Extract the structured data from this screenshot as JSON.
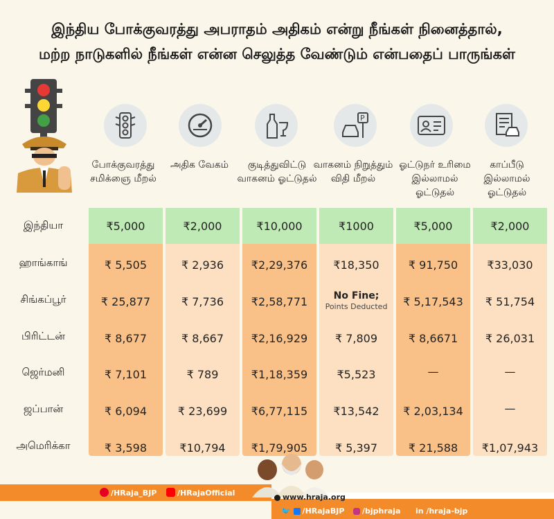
{
  "title_line1": "இந்திய போக்குவரத்து அபராதம் அதிகம் என்று நீங்கள் நினைத்தால்,",
  "title_line2": "மற்ற நாடுகளில் நீங்கள் என்ன செலுத்த வேண்டும் என்பதைப் பாருங்கள்",
  "columns": [
    {
      "header": "போக்குவரத்து சமிக்ஞை மீறல்",
      "icon": "traffic-light-icon"
    },
    {
      "header": "அதிக வேகம்",
      "icon": "speedometer-icon"
    },
    {
      "header": "குடித்துவிட்டு வாகனம் ஓட்டுதல்",
      "icon": "bottle-glass-icon"
    },
    {
      "header": "வாகனம் நிறுத்தும் விதி மீறல்",
      "icon": "parking-icon"
    },
    {
      "header": "ஓட்டுநர் உரிமை இல்லாமல் ஓட்டுதல்",
      "icon": "license-card-icon"
    },
    {
      "header": "காப்பீடு இல்லாமல் ஓட்டுதல்",
      "icon": "insurance-document-icon"
    }
  ],
  "rows": [
    {
      "country": "இந்தியா",
      "values": [
        "₹5,000",
        "₹2,000",
        "₹10,000",
        "₹1000",
        "₹5,000",
        "₹2,000"
      ]
    },
    {
      "country": "ஹாங்காங்",
      "values": [
        "₹ 5,505",
        "₹ 2,936",
        "₹2,29,376",
        "₹18,350",
        "₹ 91,750",
        "₹33,030"
      ]
    },
    {
      "country": "சிங்கப்பூர்",
      "values": [
        "₹ 25,877",
        "₹ 7,736",
        "₹2,58,771",
        "No Fine;",
        "₹ 5,17,543",
        "₹ 51,754"
      ],
      "note": "Points Deducted"
    },
    {
      "country": "பிரிட்டன்",
      "values": [
        "₹ 8,677",
        "₹ 8,667",
        "₹2,16,929",
        "₹ 7,809",
        "₹ 8,6671",
        "₹ 26,031"
      ]
    },
    {
      "country": "ஜெர்மனி",
      "values": [
        "₹ 7,101",
        "₹ 789",
        "₹1,18,359",
        "₹5,523",
        "—",
        "—"
      ]
    },
    {
      "country": "ஜப்பான்",
      "values": [
        "₹ 6,094",
        "₹ 23,699",
        "₹6,77,115",
        "₹13,542",
        "₹ 2,03,134",
        "—"
      ]
    },
    {
      "country": "அமெரிக்கா",
      "values": [
        "₹ 3,598",
        "₹10,794",
        "₹1,79,905",
        "₹ 5,397",
        "₹ 21,588",
        "₹1,07,943"
      ]
    }
  ],
  "footer": {
    "pinterest": "/HRaja_BJP",
    "youtube": "/HRajaOfficial",
    "website": "www.hraja.org",
    "twitter_fb": "/HRajaBJP",
    "instagram": "/bjphraja",
    "linkedin": "/hraja-bjp"
  },
  "colors": {
    "dark_col": "#f9c187",
    "light_col": "#fde0c2",
    "india_row": "#bfe9b5",
    "footer": "#f38b2a"
  }
}
